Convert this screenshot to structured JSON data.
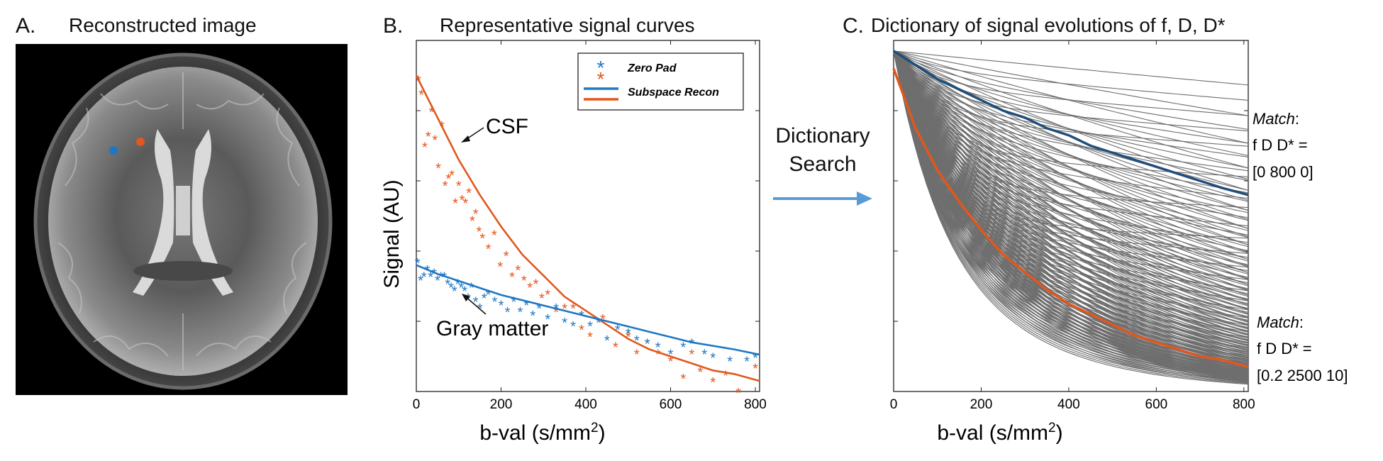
{
  "panels": {
    "a": {
      "label": "A.",
      "title": "Reconstructed image"
    },
    "b": {
      "label": "B.",
      "title": "Representative signal curves"
    },
    "c": {
      "label": "C.",
      "title": "Dictionary of signal evolutions of f, D, D*"
    }
  },
  "arrow": {
    "line1": "Dictionary",
    "line2": "Search"
  },
  "colors": {
    "blue": "#1f77c4",
    "orange": "#e2571c",
    "dark_blue": "#1f4e79",
    "gray": "#6e6e6e"
  },
  "chart_data": [
    {
      "id": "signal-curves",
      "type": "scatter",
      "title": "Representative signal curves",
      "xlabel": "b-val (s/mm²)",
      "xlabel_main": "b-val (s/mm",
      "xlabel_sup": "2",
      "xlabel_end": ")",
      "ylabel": "Signal (AU)",
      "xlim": [
        0,
        810
      ],
      "ylim": [
        0,
        1.0
      ],
      "xticks": [
        0,
        200,
        400,
        600,
        800
      ],
      "legend": {
        "position": "top-right",
        "entries": [
          "Zero Pad",
          "Subspace Recon"
        ]
      },
      "annotations": [
        "CSF",
        "Gray matter"
      ],
      "series": [
        {
          "name": "CSF Zero Pad",
          "marker": "asterisk",
          "color": "#e2571c",
          "x": [
            5,
            12,
            20,
            28,
            36,
            44,
            52,
            60,
            68,
            76,
            84,
            92,
            100,
            108,
            116,
            124,
            132,
            140,
            148,
            156,
            170,
            184,
            198,
            212,
            226,
            240,
            254,
            268,
            282,
            296,
            310,
            330,
            350,
            370,
            390,
            410,
            440,
            470,
            500,
            520,
            545,
            570,
            600,
            630,
            650,
            670,
            700,
            730,
            760,
            800
          ],
          "y": [
            0.89,
            0.85,
            0.7,
            0.73,
            0.8,
            0.72,
            0.64,
            0.76,
            0.59,
            0.61,
            0.62,
            0.54,
            0.59,
            0.55,
            0.54,
            0.57,
            0.49,
            0.51,
            0.46,
            0.44,
            0.41,
            0.45,
            0.36,
            0.39,
            0.33,
            0.35,
            0.32,
            0.3,
            0.31,
            0.27,
            0.28,
            0.23,
            0.24,
            0.24,
            0.18,
            0.16,
            0.21,
            0.13,
            0.16,
            0.11,
            0.14,
            0.11,
            0.09,
            0.04,
            0.11,
            0.06,
            0.03,
            0.05,
            0.0,
            0.07
          ]
        },
        {
          "name": "CSF Subspace Recon",
          "marker": "line",
          "color": "#e2571c",
          "x": [
            0,
            50,
            100,
            150,
            200,
            250,
            300,
            350,
            400,
            450,
            500,
            550,
            600,
            650,
            700,
            750,
            810
          ],
          "y": [
            0.9,
            0.78,
            0.66,
            0.56,
            0.47,
            0.39,
            0.33,
            0.27,
            0.23,
            0.19,
            0.15,
            0.12,
            0.1,
            0.08,
            0.06,
            0.05,
            0.03
          ]
        },
        {
          "name": "Gray matter Zero Pad",
          "marker": "asterisk",
          "color": "#1f77c4",
          "x": [
            3,
            10,
            18,
            26,
            34,
            42,
            50,
            58,
            66,
            74,
            82,
            90,
            98,
            106,
            114,
            122,
            130,
            140,
            150,
            160,
            170,
            185,
            200,
            215,
            230,
            245,
            260,
            275,
            290,
            310,
            330,
            350,
            370,
            390,
            410,
            430,
            450,
            475,
            500,
            520,
            545,
            570,
            600,
            630,
            650,
            680,
            700,
            740,
            780,
            800
          ],
          "y": [
            0.37,
            0.32,
            0.33,
            0.35,
            0.33,
            0.34,
            0.32,
            0.33,
            0.33,
            0.31,
            0.3,
            0.29,
            0.31,
            0.3,
            0.29,
            0.27,
            0.3,
            0.26,
            0.24,
            0.27,
            0.28,
            0.26,
            0.25,
            0.23,
            0.26,
            0.23,
            0.25,
            0.22,
            0.24,
            0.21,
            0.24,
            0.2,
            0.19,
            0.22,
            0.19,
            0.2,
            0.15,
            0.18,
            0.17,
            0.15,
            0.14,
            0.13,
            0.11,
            0.13,
            0.14,
            0.11,
            0.1,
            0.09,
            0.09,
            0.1
          ]
        },
        {
          "name": "Gray matter Subspace Recon",
          "marker": "line",
          "color": "#1f77c4",
          "x": [
            0,
            50,
            100,
            150,
            200,
            250,
            300,
            350,
            400,
            450,
            500,
            550,
            600,
            650,
            700,
            750,
            810
          ],
          "y": [
            0.36,
            0.335,
            0.315,
            0.295,
            0.275,
            0.26,
            0.245,
            0.23,
            0.215,
            0.2,
            0.185,
            0.17,
            0.155,
            0.14,
            0.13,
            0.12,
            0.105
          ]
        }
      ]
    },
    {
      "id": "dictionary",
      "type": "line",
      "title": "Dictionary of signal evolutions of f, D, D*",
      "xlabel": "b-val (s/mm²)",
      "xlabel_main": "b-val (s/mm",
      "xlabel_sup": "2",
      "xlabel_end": ")",
      "ylabel": "",
      "xlim": [
        0,
        810
      ],
      "ylim": [
        0,
        1.0
      ],
      "xticks": [
        0,
        200,
        400,
        600,
        800
      ],
      "dictionary_D_values": [
        100,
        200,
        300,
        400,
        500,
        600,
        700,
        800,
        900,
        1000,
        1100,
        1200,
        1300,
        1400,
        1500,
        1600,
        1700,
        1800,
        1900,
        2000,
        2100,
        2200,
        2300,
        2400,
        2500,
        2600,
        2700,
        2800,
        2900,
        3000
      ],
      "dictionary_f_values": [
        0,
        0.05,
        0.1,
        0.15,
        0.2,
        0.3,
        0.4,
        0.5
      ],
      "dictionary_Dstar": 10,
      "series": [
        {
          "name": "Gray matter match",
          "color": "#1f4e79",
          "x": [
            0,
            50,
            100,
            150,
            200,
            250,
            300,
            350,
            400,
            450,
            500,
            550,
            600,
            650,
            700,
            750,
            810
          ],
          "y": [
            0.97,
            0.93,
            0.89,
            0.86,
            0.83,
            0.8,
            0.78,
            0.75,
            0.73,
            0.7,
            0.68,
            0.66,
            0.64,
            0.62,
            0.6,
            0.58,
            0.56
          ]
        },
        {
          "name": "CSF match",
          "color": "#e2571c",
          "x": [
            0,
            50,
            100,
            150,
            200,
            250,
            300,
            350,
            400,
            450,
            500,
            550,
            600,
            650,
            700,
            750,
            810
          ],
          "y": [
            0.92,
            0.75,
            0.63,
            0.54,
            0.46,
            0.39,
            0.34,
            0.29,
            0.25,
            0.22,
            0.19,
            0.16,
            0.14,
            0.12,
            0.1,
            0.09,
            0.07
          ]
        }
      ],
      "annotations": [
        {
          "heading": "Match",
          "line1": "f D D* =",
          "line2": "[0 800 0]"
        },
        {
          "heading": "Match",
          "line1": "f D D* =",
          "line2": "[0.2 2500 10]"
        }
      ]
    }
  ]
}
